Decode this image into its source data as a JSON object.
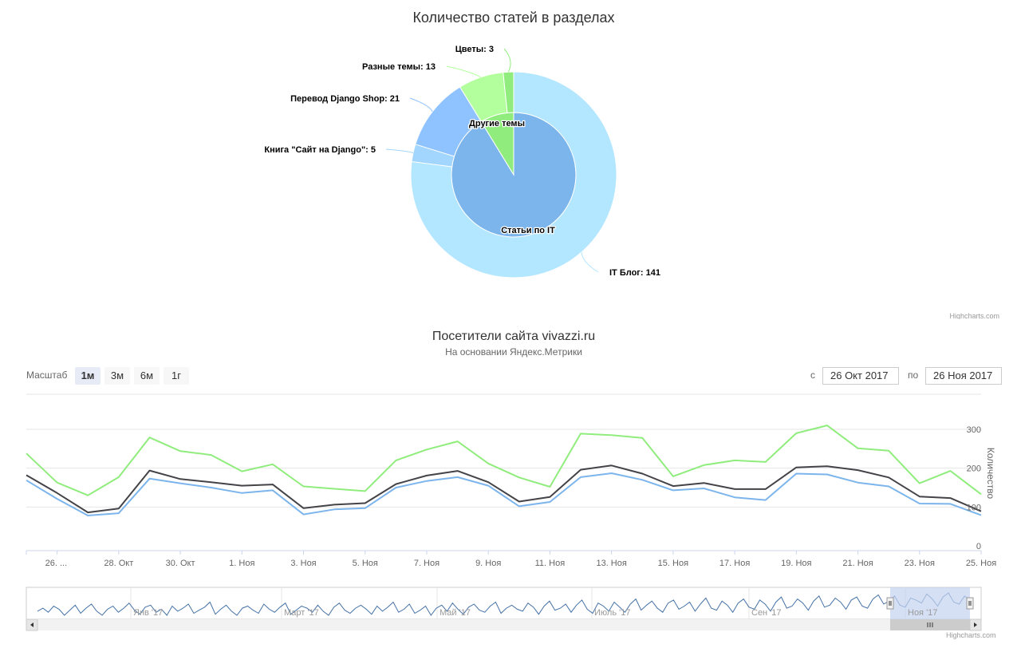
{
  "pie_section": {
    "credits": "Highcharts.com"
  },
  "line_section": {
    "range_selector": {
      "label": "Масштаб",
      "buttons": [
        "1м",
        "3м",
        "6м",
        "1г"
      ],
      "active_index": 0,
      "from_label": "с",
      "from_value": "26 Окт 2017",
      "to_label": "по",
      "to_value": "26 Ноя 2017"
    },
    "credits": "Highcharts.com"
  },
  "colors": {
    "inner": "#7cb5ec",
    "inner_other": "#90ed7d",
    "outer_it_blog": "#b3e6ff",
    "outer_book": "#a3d6ff",
    "outer_django_shop": "#8fc3ff",
    "outer_misc": "#b4ff9d",
    "outer_flowers": "#90ed7d",
    "line_green": "#90ed7d",
    "line_dark": "#434348",
    "line_blue": "#7cb5ec",
    "navigator_line": "#4572a7",
    "navigator_mask": "#c4d3ef"
  },
  "chart_data": [
    {
      "type": "pie",
      "title": "Количество статей в разделах",
      "inner_ring": [
        {
          "name": "Статьи по IT",
          "value": 167
        },
        {
          "name": "Другие темы",
          "value": 16
        }
      ],
      "outer_ring": [
        {
          "name": "IT Блог",
          "value": 141,
          "label": "IT Блог: 141",
          "parent": "Статьи по IT"
        },
        {
          "name": "Книга \"Сайт на Django\"",
          "value": 5,
          "label": "Книга \"Сайт на Django\": 5",
          "parent": "Статьи по IT"
        },
        {
          "name": "Перевод Django Shop",
          "value": 21,
          "label": "Перевод Django Shop: 21",
          "parent": "Статьи по IT"
        },
        {
          "name": "Разные темы",
          "value": 13,
          "label": "Разные темы: 13",
          "parent": "Другие темы"
        },
        {
          "name": "Цветы",
          "value": 3,
          "label": "Цветы: 3",
          "parent": "Другие темы"
        }
      ]
    },
    {
      "type": "line",
      "title": "Посетители сайта vivazzi.ru",
      "subtitle": "На основании Яндекс.Метрики",
      "ylabel": "Количество",
      "ylim": [
        0,
        300
      ],
      "yticks": [
        0,
        100,
        200,
        300
      ],
      "x_start_day_of_october": 25,
      "xticks": [
        "26. ...",
        "28. Окт",
        "30. Окт",
        "1. Ноя",
        "3. Ноя",
        "5. Ноя",
        "7. Ноя",
        "9. Ноя",
        "11. Ноя",
        "13. Ноя",
        "15. Ноя",
        "17. Ноя",
        "19. Ноя",
        "21. Ноя",
        "23. Ноя",
        "25. Ноя"
      ],
      "series": [
        {
          "color_key": "line_green",
          "values": [
            238,
            163,
            130,
            177,
            279,
            244,
            234,
            192,
            210,
            153,
            147,
            141,
            220,
            248,
            269,
            212,
            176,
            152,
            289,
            285,
            278,
            179,
            208,
            220,
            216,
            290,
            310,
            251,
            245,
            161,
            193,
            133
          ]
        },
        {
          "color_key": "line_dark",
          "values": [
            182,
            136,
            86,
            96,
            194,
            172,
            164,
            155,
            158,
            97,
            106,
            110,
            159,
            181,
            193,
            164,
            114,
            126,
            196,
            207,
            186,
            154,
            162,
            146,
            146,
            202,
            205,
            195,
            176,
            127,
            123,
            89
          ]
        },
        {
          "color_key": "line_blue",
          "values": [
            169,
            121,
            78,
            84,
            173,
            161,
            150,
            136,
            143,
            81,
            94,
            97,
            150,
            167,
            177,
            155,
            102,
            113,
            177,
            187,
            170,
            143,
            148,
            125,
            118,
            186,
            184,
            163,
            153,
            109,
            108,
            79
          ]
        }
      ]
    }
  ],
  "navigator": {
    "labels": [
      "Янв '17",
      "Март '17",
      "Май '17",
      "Июль '17",
      "Сен '17",
      "Ноя '17"
    ],
    "values": [
      16,
      19,
      15,
      21,
      18,
      12,
      17,
      22,
      14,
      19,
      23,
      16,
      12,
      18,
      21,
      15,
      19,
      24,
      17,
      13,
      20,
      22,
      15,
      18,
      12,
      21,
      16,
      19,
      23,
      14,
      17,
      20,
      25,
      13,
      18,
      22,
      16,
      12,
      19,
      21,
      17,
      14,
      23,
      18,
      15,
      20,
      24,
      13,
      17,
      21,
      19,
      15,
      22,
      16,
      12,
      20,
      24,
      17,
      14,
      19,
      22,
      18,
      13,
      21,
      16,
      20,
      25,
      15,
      18,
      23,
      14,
      17,
      21,
      12,
      19,
      22,
      16,
      24,
      18,
      13,
      20,
      23,
      17,
      15,
      21,
      25,
      14,
      19,
      22,
      18,
      16,
      24,
      20,
      13,
      21,
      26,
      17,
      19,
      23,
      15,
      22,
      27,
      18,
      14,
      24,
      21,
      16,
      25,
      20,
      15,
      23,
      28,
      17,
      22,
      26,
      19,
      15,
      24,
      27,
      18,
      21,
      25,
      16,
      23,
      29,
      19,
      17,
      26,
      22,
      15,
      24,
      28,
      20,
      18,
      27,
      23,
      16,
      25,
      30,
      19,
      21,
      28,
      24,
      17,
      26,
      31,
      20,
      22,
      29,
      25,
      18,
      27,
      30,
      21,
      19,
      28,
      32,
      23,
      26,
      31,
      22,
      20,
      29,
      27,
      24,
      33,
      28,
      21,
      30,
      34,
      25,
      23,
      31,
      27
    ]
  }
}
